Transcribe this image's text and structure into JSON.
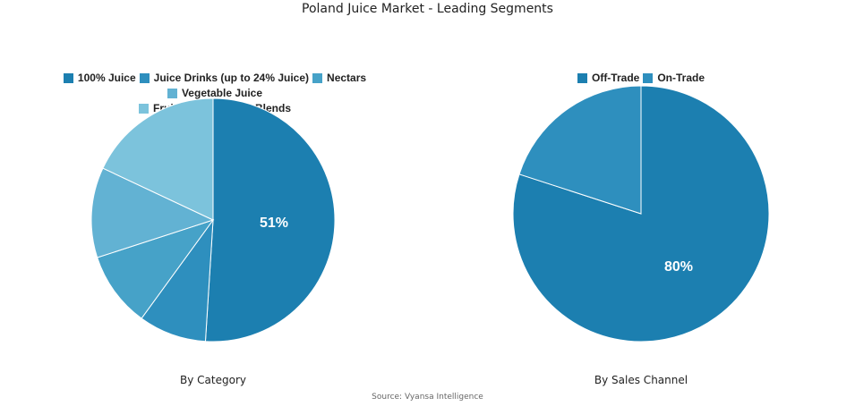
{
  "title": "Poland Juice Market - Leading Segments",
  "source": "Source: Vyansa Intelligence",
  "chart_data": [
    {
      "type": "pie",
      "subtitle": "By Category",
      "legend_position": "top",
      "labels": [
        "100% Juice",
        "Juice Drinks (up to 24% Juice)",
        "Nectars",
        "Vegetable Juice",
        "Fruit and Vegetable Blends"
      ],
      "values": [
        51,
        9,
        10,
        12,
        18
      ],
      "colors": [
        "#1c7fb0",
        "#2e8fbe",
        "#46a2c8",
        "#62b2d3",
        "#7cc3dc"
      ],
      "data_labels": [
        "51%",
        "",
        "",
        "",
        ""
      ]
    },
    {
      "type": "pie",
      "subtitle": "By Sales Channel",
      "legend_position": "top",
      "labels": [
        "Off-Trade",
        "On-Trade"
      ],
      "values": [
        80,
        20
      ],
      "colors": [
        "#1c7fb0",
        "#2e8fbe"
      ],
      "data_labels": [
        "80%",
        ""
      ]
    }
  ]
}
